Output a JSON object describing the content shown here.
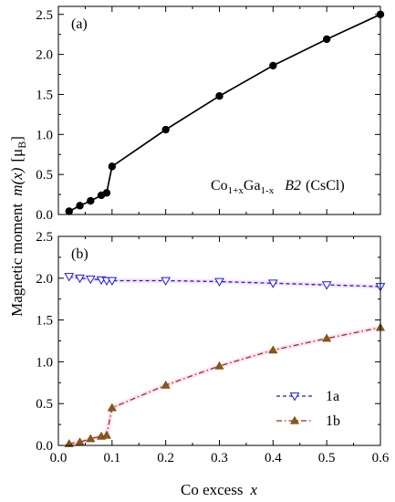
{
  "chart_data": [
    {
      "panel": "(a)",
      "type": "line",
      "xlabel_prefix": "Co excess",
      "xlabel_var": "x",
      "ylabel_prefix": "Magnetic moment",
      "ylabel_var": "m(x)",
      "ylabel_unit": "[μ",
      "ylabel_unit_sub": "B",
      "ylabel_close": "]",
      "xlim": [
        0,
        0.6
      ],
      "ylim": [
        0,
        2.6
      ],
      "x_ticks": [
        0.0,
        0.1,
        0.2,
        0.3,
        0.4,
        0.5,
        0.6
      ],
      "x_tick_labels": [
        "0.0",
        "0.1",
        "0.2",
        "0.3",
        "0.4",
        "0.5",
        "0.6"
      ],
      "y_ticks": [
        0.0,
        0.5,
        1.0,
        1.5,
        2.0,
        2.5
      ],
      "y_tick_labels": [
        "0.0",
        "0.5",
        "1.0",
        "1.5",
        "2.0",
        "2.5"
      ],
      "annotation": {
        "co": "Co",
        "co_sub": "1+x",
        "ga": "Ga",
        "ga_sub": "1-x",
        "b2": "B2",
        "cscl": "(CsCl)"
      },
      "series": [
        {
          "color": "#000000",
          "marker": "circle",
          "x": [
            0.02,
            0.04,
            0.06,
            0.08,
            0.09,
            0.1,
            0.2,
            0.3,
            0.4,
            0.5,
            0.6
          ],
          "y": [
            0.04,
            0.11,
            0.17,
            0.24,
            0.27,
            0.6,
            1.06,
            1.48,
            1.86,
            2.19,
            2.5
          ]
        }
      ]
    },
    {
      "panel": "(b)",
      "type": "line",
      "xlim": [
        0,
        0.6
      ],
      "ylim": [
        0,
        2.5
      ],
      "x_ticks": [
        0.0,
        0.1,
        0.2,
        0.3,
        0.4,
        0.5,
        0.6
      ],
      "x_tick_labels": [
        "0.0",
        "0.1",
        "0.2",
        "0.3",
        "0.4",
        "0.5",
        "0.6"
      ],
      "y_ticks": [
        0.0,
        0.5,
        1.0,
        1.5,
        2.0,
        2.5
      ],
      "y_tick_labels": [
        "0.0",
        "0.5",
        "1.0",
        "1.5",
        "2.0",
        "2.5"
      ],
      "legend_position": "lower-right",
      "series": [
        {
          "name": "1a",
          "color": "#1a1adb",
          "marker": "triangle-down-open",
          "line": "dashed",
          "x": [
            0.02,
            0.04,
            0.06,
            0.08,
            0.09,
            0.1,
            0.2,
            0.3,
            0.4,
            0.5,
            0.6
          ],
          "y": [
            2.02,
            2.0,
            1.99,
            1.98,
            1.97,
            1.97,
            1.97,
            1.96,
            1.94,
            1.92,
            1.9
          ]
        },
        {
          "name": "1b",
          "color": "#a82a12",
          "marker": "triangle-up-filled",
          "line": "dash-dot",
          "x": [
            0.02,
            0.04,
            0.06,
            0.08,
            0.09,
            0.1,
            0.2,
            0.3,
            0.4,
            0.5,
            0.6
          ],
          "y": [
            0.02,
            0.04,
            0.08,
            0.11,
            0.12,
            0.45,
            0.72,
            0.95,
            1.14,
            1.28,
            1.41
          ]
        }
      ]
    }
  ]
}
